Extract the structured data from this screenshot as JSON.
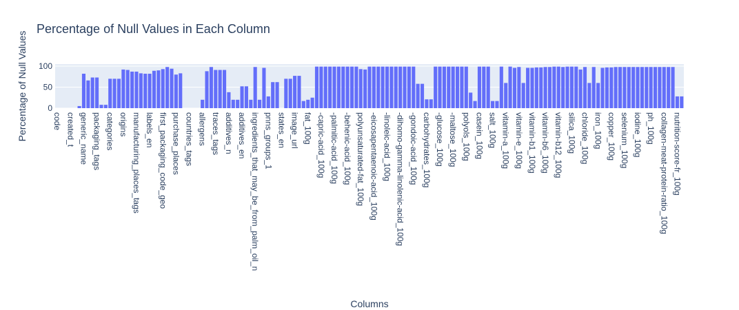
{
  "chart_data": {
    "type": "bar",
    "title": "Percentage of Null Values in Each Column",
    "x_label": "Columns",
    "y_label": "Percentage of Null Values",
    "color": "#636efa",
    "grid": true,
    "ylim": [
      0,
      105
    ],
    "yticks": [
      0,
      50,
      100
    ],
    "categories": [
      "code",
      null,
      null,
      "created_t",
      null,
      null,
      "generic_name",
      null,
      null,
      "packaging_tags",
      null,
      null,
      "categories",
      null,
      null,
      "origins",
      null,
      null,
      "manufacturing_places_tags",
      null,
      null,
      "labels_en",
      null,
      null,
      "first_packaging_code_geo",
      null,
      null,
      "purchase_places",
      null,
      null,
      "countries_tags",
      null,
      null,
      "allergens",
      null,
      null,
      "traces_tags",
      null,
      null,
      "additives_n",
      null,
      null,
      "additives_en",
      null,
      null,
      "ingredients_that_may_be_from_palm_oil_n",
      null,
      null,
      "pnns_groups_1",
      null,
      null,
      "states_en",
      null,
      null,
      "image_url",
      null,
      null,
      "fat_100g",
      null,
      null,
      "-capric-acid_100g",
      null,
      null,
      "-palmitic-acid_100g",
      null,
      null,
      "-behenic-acid_100g",
      null,
      null,
      "polyunsaturated-fat_100g",
      null,
      null,
      "-eicosapentaenoic-acid_100g",
      null,
      null,
      "-linoleic-acid_100g",
      null,
      null,
      "-dihomo-gamma-linolenic-acid_100g",
      null,
      null,
      "-gondoic-acid_100g",
      null,
      null,
      "carbohydrates_100g",
      null,
      null,
      "-glucose_100g",
      null,
      null,
      "-maltose_100g",
      null,
      null,
      "polyols_100g",
      null,
      null,
      "casein_100g",
      null,
      null,
      "salt_100g",
      null,
      null,
      "vitamin-a_100g",
      null,
      null,
      "vitamin-e_100g",
      null,
      null,
      "vitamin-b1_100g",
      null,
      null,
      "vitamin-b6_100g",
      null,
      null,
      "vitamin-b12_100g",
      null,
      null,
      "silica_100g",
      null,
      null,
      "chloride_100g",
      null,
      null,
      "iron_100g",
      null,
      null,
      "copper_100g",
      null,
      null,
      "selenium_100g",
      null,
      null,
      "iodine_100g",
      null,
      null,
      "ph_100g",
      null,
      null,
      "collagen-meat-protein-ratio_100g",
      null,
      null,
      "nutrition-score-fr_100g",
      null
    ],
    "values": [
      0,
      0,
      0,
      0,
      0,
      5,
      82,
      66,
      73,
      73,
      8,
      8,
      70,
      70,
      70,
      92,
      91,
      87,
      87,
      83,
      82,
      82,
      89,
      90,
      93,
      98,
      94,
      80,
      83,
      0,
      0,
      0,
      0,
      20,
      88,
      98,
      91,
      91,
      91,
      38,
      20,
      20,
      52,
      52,
      20,
      98,
      20,
      96,
      28,
      62,
      62,
      0,
      70,
      70,
      77,
      77,
      17,
      20,
      25,
      99,
      99,
      99,
      99,
      99,
      99,
      99,
      99,
      99,
      99,
      93,
      92,
      99,
      99,
      99,
      99,
      99,
      99,
      99,
      99,
      99,
      99,
      99,
      58,
      58,
      21,
      21,
      99,
      99,
      99,
      99,
      99,
      99,
      99,
      99,
      37,
      17,
      99,
      99,
      99,
      17,
      17,
      99,
      60,
      99,
      96,
      98,
      60,
      96,
      96,
      97,
      97,
      98,
      98,
      99,
      99,
      98,
      99,
      99,
      99,
      92,
      98,
      60,
      98,
      60,
      96,
      97,
      97,
      98,
      98,
      98,
      98,
      98,
      98,
      98,
      98,
      98,
      98,
      98,
      98,
      98,
      98,
      28,
      28
    ]
  }
}
